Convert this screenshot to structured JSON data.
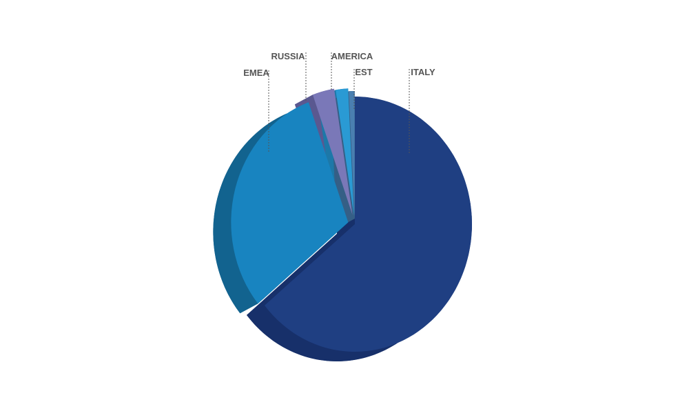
{
  "chart_data": {
    "type": "pie",
    "title": "",
    "slices": [
      {
        "label": "ITALY",
        "value": 64.0,
        "color": "#1f3f82",
        "side": "#17306a"
      },
      {
        "label": "EMEA",
        "value": 30.5,
        "color": "#1884c0",
        "side": "#12638f"
      },
      {
        "label": "RUSSIA",
        "value": 3.0,
        "color": "#7a78b8",
        "side": "#5a5890"
      },
      {
        "label": "AMERICA",
        "value": 1.7,
        "color": "#2a9ad4",
        "side": "#1d78a8"
      },
      {
        "label": "EST",
        "value": 0.8,
        "color": "#4a7fb0",
        "side": "#355f86"
      }
    ],
    "exploded": true,
    "three_d": true,
    "legend": "none",
    "data_labels": "leader-lines-above"
  }
}
